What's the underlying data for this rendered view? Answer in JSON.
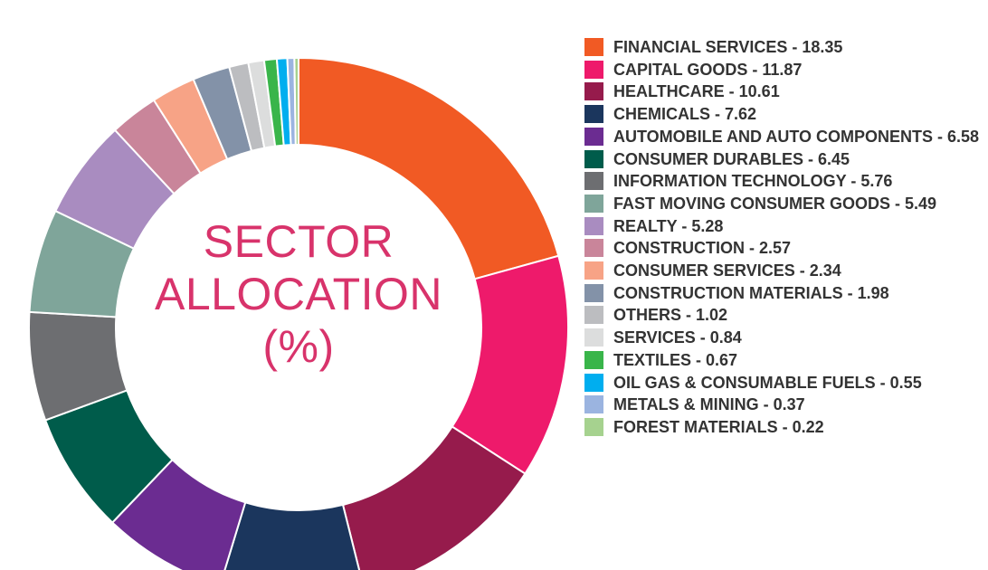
{
  "center_title": {
    "line1": "SECTOR",
    "line2": "ALLOCATION",
    "line3": "(%)"
  },
  "chart_data": {
    "type": "pie",
    "donut": true,
    "start": "top",
    "direction": "clockwise",
    "legend_placement": "right",
    "slices": [
      {
        "label": "FINANCIAL SERVICES",
        "value": 18.35,
        "color": "#f15a24"
      },
      {
        "label": "CAPITAL GOODS",
        "value": 11.87,
        "color": "#ee1a6b"
      },
      {
        "label": "HEALTHCARE",
        "value": 10.61,
        "color": "#961b4c"
      },
      {
        "label": "CHEMICALS",
        "value": 7.62,
        "color": "#1b365d"
      },
      {
        "label": "AUTOMOBILE AND AUTO COMPONENTS",
        "value": 6.58,
        "color": "#6b2c91"
      },
      {
        "label": "CONSUMER DURABLES",
        "value": 6.45,
        "color": "#005c4b"
      },
      {
        "label": "INFORMATION TECHNOLOGY",
        "value": 5.76,
        "color": "#6d6e71"
      },
      {
        "label": "FAST MOVING CONSUMER GOODS",
        "value": 5.49,
        "color": "#7fa59a"
      },
      {
        "label": "REALTY",
        "value": 5.28,
        "color": "#a98cc0"
      },
      {
        "label": "CONSTRUCTION",
        "value": 2.57,
        "color": "#c9859a"
      },
      {
        "label": "CONSUMER SERVICES",
        "value": 2.34,
        "color": "#f7a386"
      },
      {
        "label": "CONSTRUCTION MATERIALS",
        "value": 1.98,
        "color": "#8392a8"
      },
      {
        "label": "OTHERS",
        "value": 1.02,
        "color": "#bcbdc0"
      },
      {
        "label": "SERVICES",
        "value": 0.84,
        "color": "#dcdddd"
      },
      {
        "label": "TEXTILES",
        "value": 0.67,
        "color": "#39b54a"
      },
      {
        "label": "OIL GAS & CONSUMABLE FUELS",
        "value": 0.55,
        "color": "#00aeef"
      },
      {
        "label": "METALS & MINING",
        "value": 0.37,
        "color": "#9bb4e0"
      },
      {
        "label": "FOREST MATERIALS",
        "value": 0.22,
        "color": "#a6d28f"
      }
    ]
  },
  "legend": {
    "items": [
      "FINANCIAL SERVICES - 18.35",
      "CAPITAL GOODS - 11.87",
      "HEALTHCARE - 10.61",
      "CHEMICALS - 7.62",
      "AUTOMOBILE AND AUTO COMPONENTS - 6.58",
      "CONSUMER DURABLES - 6.45",
      "INFORMATION TECHNOLOGY - 5.76",
      "FAST MOVING CONSUMER GOODS - 5.49",
      "REALTY - 5.28",
      "CONSTRUCTION - 2.57",
      "CONSUMER SERVICES - 2.34",
      "CONSTRUCTION MATERIALS - 1.98",
      "OTHERS - 1.02",
      "SERVICES - 0.84",
      "TEXTILES - 0.67",
      "OIL GAS & CONSUMABLE FUELS - 0.55",
      "METALS & MINING - 0.37",
      "FOREST MATERIALS - 0.22"
    ]
  }
}
